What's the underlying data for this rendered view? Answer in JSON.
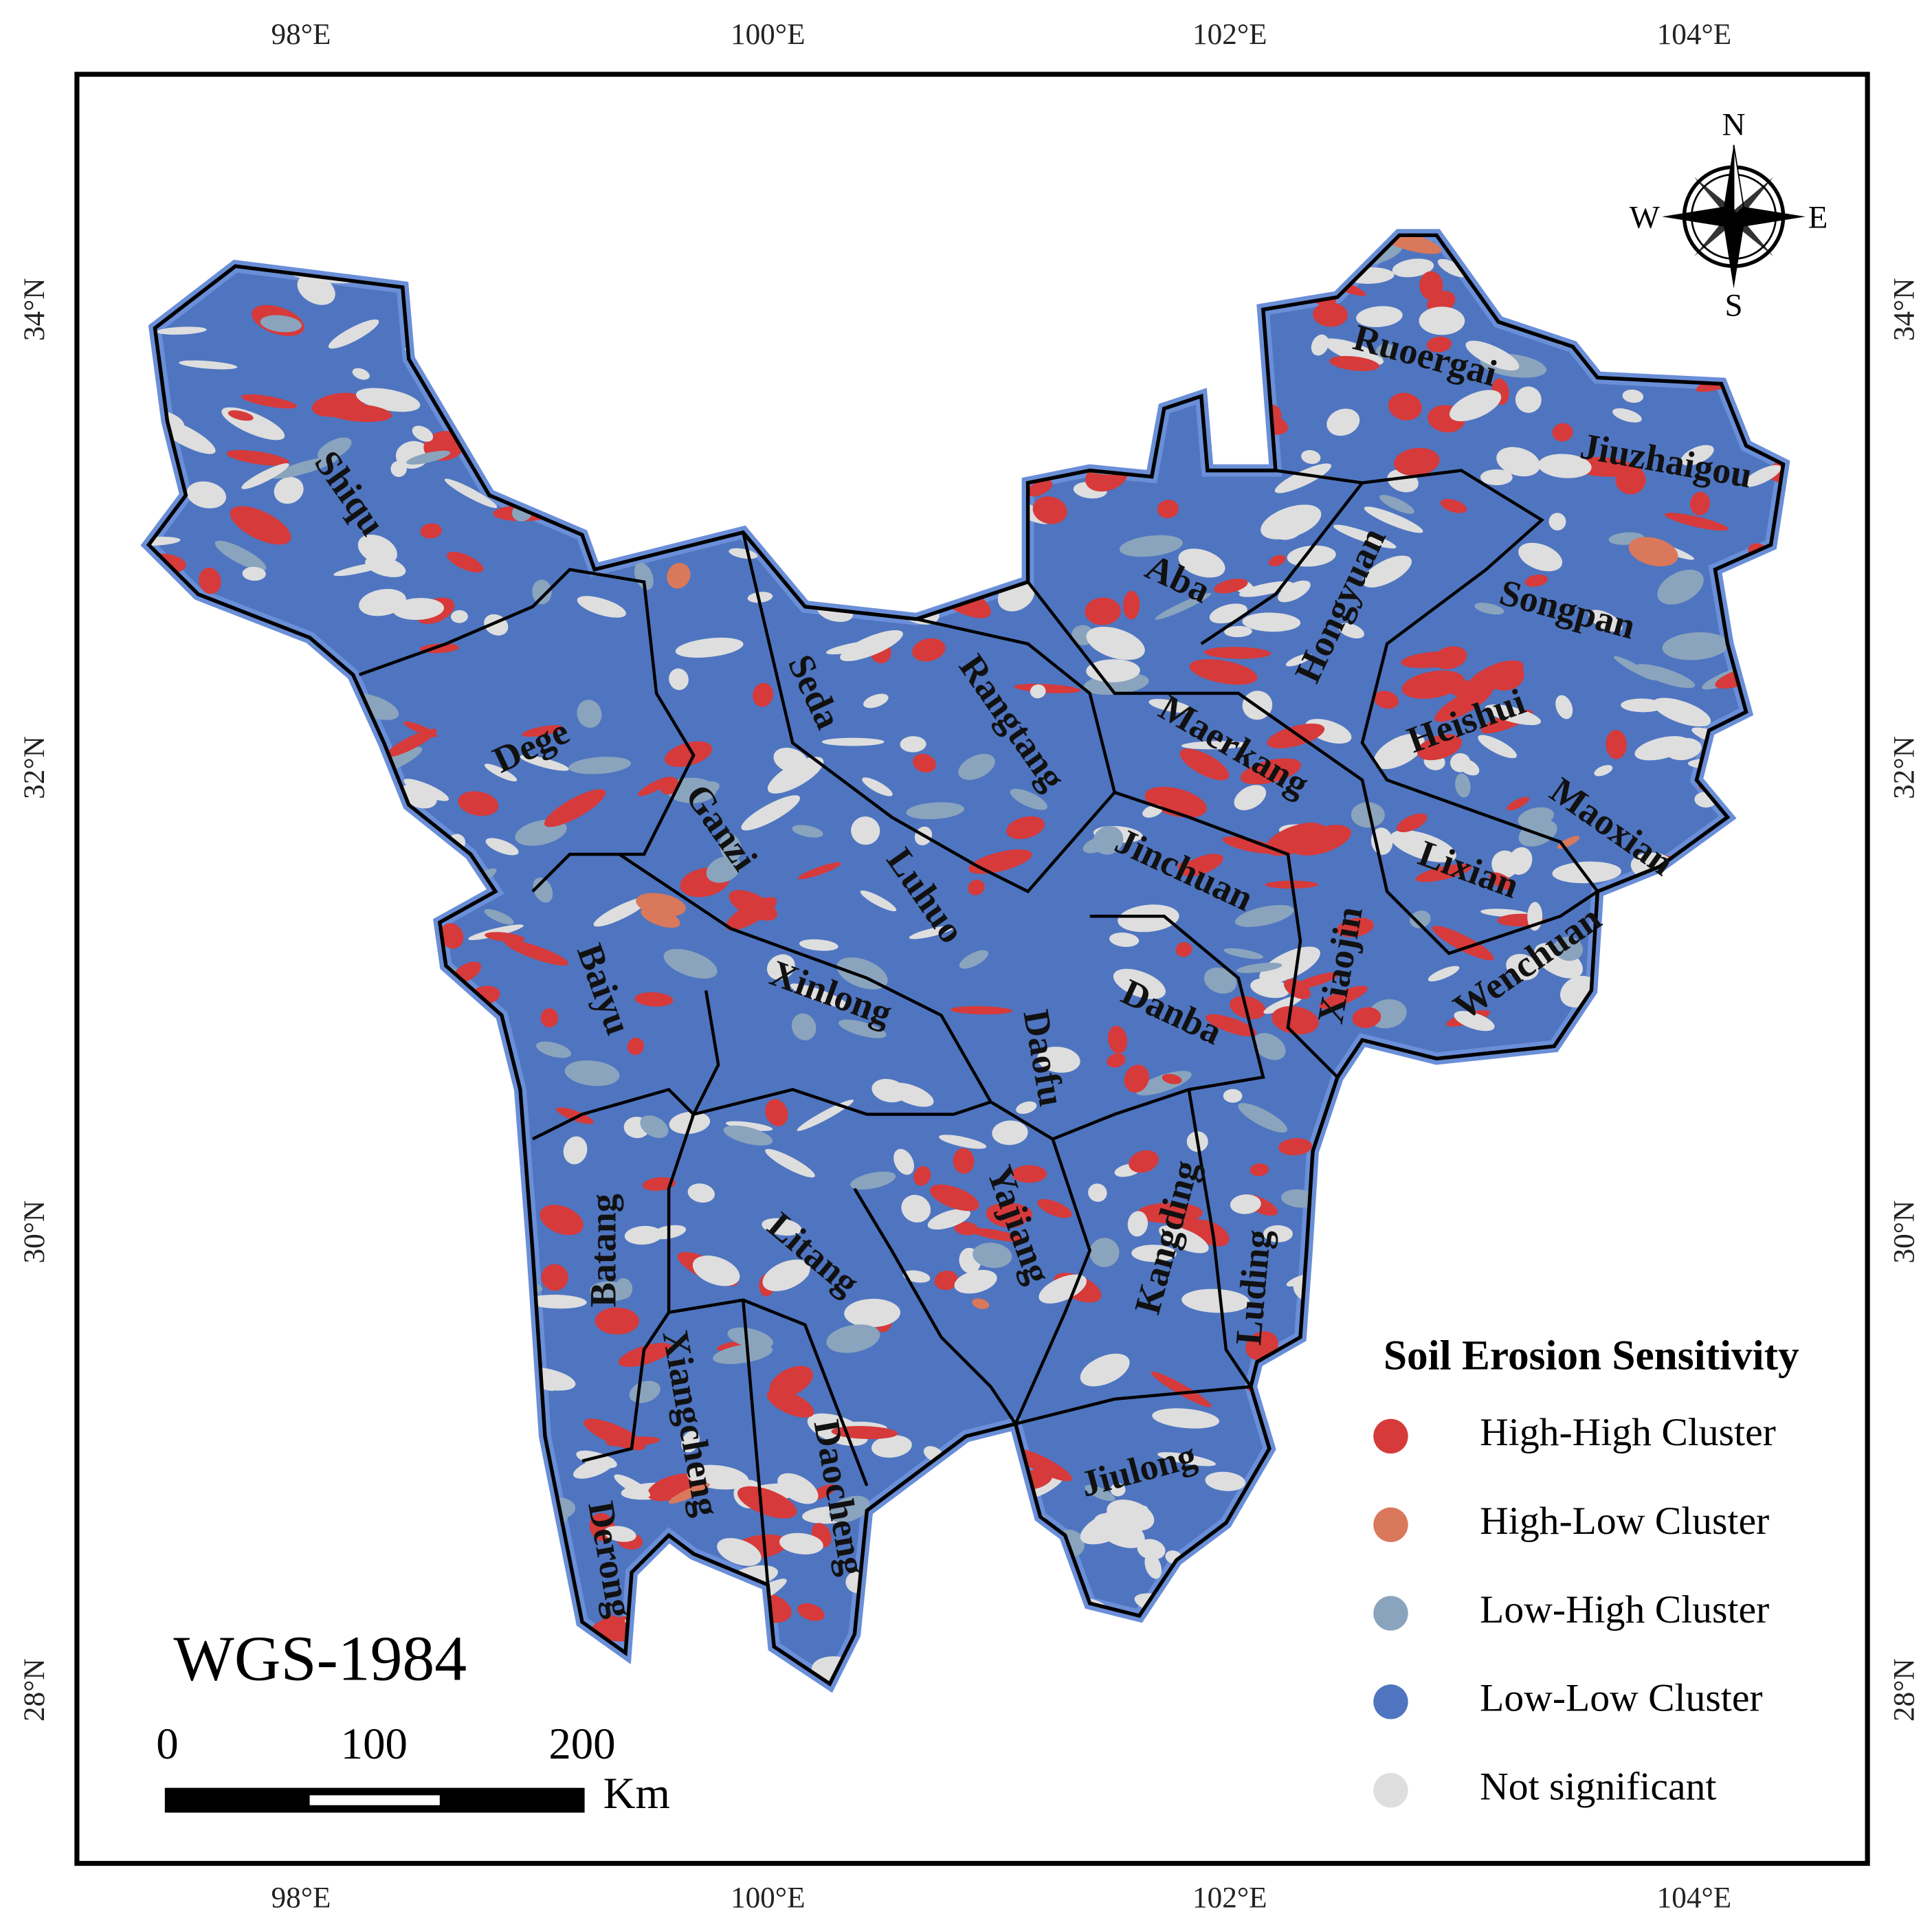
{
  "graticule": {
    "top": [
      "98°E",
      "100°E",
      "102°E",
      "104°E"
    ],
    "bottom": [
      "98°E",
      "100°E",
      "102°E",
      "104°E"
    ],
    "left": [
      "34°N",
      "32°N",
      "30°N",
      "28°N"
    ],
    "right": [
      "34°N",
      "32°N",
      "30°N",
      "28°N"
    ]
  },
  "compass": {
    "north": "N",
    "east": "E",
    "south": "S",
    "west": "W"
  },
  "crs": "WGS-1984",
  "scale_bar": {
    "labels": [
      "0",
      "100",
      "200"
    ],
    "unit": "Km"
  },
  "legend": {
    "title": "Soil Erosion Sensitivity",
    "items": [
      {
        "label": "High-High Cluster",
        "color": "#d63a3a"
      },
      {
        "label": "High-Low Cluster",
        "color": "#d9785a"
      },
      {
        "label": "Low-High Cluster",
        "color": "#8aa4bd"
      },
      {
        "label": "Low-Low Cluster",
        "color": "#4f75c0"
      },
      {
        "label": "Not significant",
        "color": "#dedede"
      }
    ]
  },
  "counties": [
    "Shiqu",
    "Dege",
    "Seda",
    "Ganzi",
    "Rangtang",
    "Aba",
    "Ruoergai",
    "Jiuzhaigou",
    "Hongyuan",
    "Songpan",
    "Maerkang",
    "Heishui",
    "Maoxian",
    "Lixian",
    "Jinchuan",
    "Luhuo",
    "Baiyu",
    "Xinlong",
    "Daofu",
    "Danba",
    "Xiaojin",
    "Wenchuan",
    "Yajiang",
    "Kangding",
    "Litang",
    "Batang",
    "Luding",
    "Xiangcheng",
    "Daocheng",
    "Jiulong",
    "Derong"
  ]
}
